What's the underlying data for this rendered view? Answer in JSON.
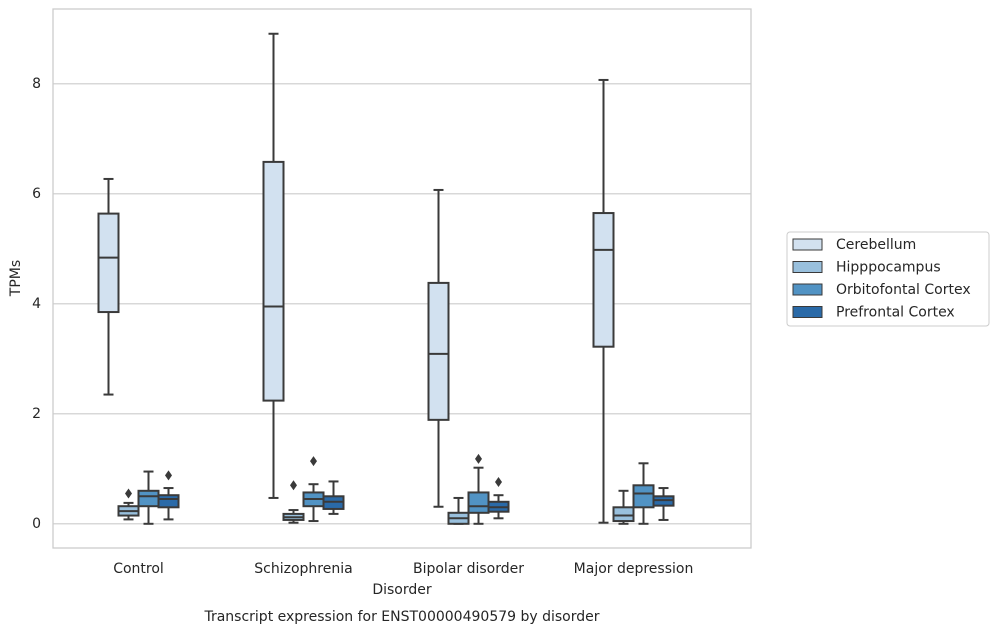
{
  "chart_data": {
    "type": "box",
    "title": "Transcript expression for ENST00000490579 by disorder",
    "x_label": "Disorder",
    "y_label": "TPMs",
    "categories": [
      "Control",
      "Schizophrenia",
      "Bipolar disorder",
      "Major depression"
    ],
    "ylim": [
      -0.44,
      9.36
    ],
    "yticks": [
      0,
      2,
      4,
      6,
      8
    ],
    "grid": true,
    "legend": "right",
    "series": [
      {
        "name": "Cerebellum",
        "color": "#d2e1f0",
        "values": [
          {
            "min": 2.35,
            "q1": 3.85,
            "median": 4.84,
            "q3": 5.64,
            "max": 6.27,
            "outliers": []
          },
          {
            "min": 0.47,
            "q1": 2.24,
            "median": 3.95,
            "q3": 6.58,
            "max": 8.91,
            "outliers": []
          },
          {
            "min": 0.31,
            "q1": 1.89,
            "median": 3.09,
            "q3": 4.38,
            "max": 6.07,
            "outliers": []
          },
          {
            "min": 0.02,
            "q1": 3.22,
            "median": 4.98,
            "q3": 5.65,
            "max": 8.07,
            "outliers": []
          }
        ]
      },
      {
        "name": "Hipppocampus",
        "color": "#99c0dd",
        "values": [
          {
            "min": 0.08,
            "q1": 0.15,
            "median": 0.23,
            "q3": 0.32,
            "max": 0.38,
            "outliers": [
              0.55
            ]
          },
          {
            "min": 0.02,
            "q1": 0.07,
            "median": 0.12,
            "q3": 0.18,
            "max": 0.25,
            "outliers": [
              0.7
            ]
          },
          {
            "min": 0.0,
            "q1": 0.0,
            "median": 0.1,
            "q3": 0.2,
            "max": 0.47,
            "outliers": []
          },
          {
            "min": 0.0,
            "q1": 0.05,
            "median": 0.15,
            "q3": 0.3,
            "max": 0.6,
            "outliers": []
          }
        ]
      },
      {
        "name": "Orbitofontal Cortex",
        "color": "#5193c4",
        "values": [
          {
            "min": 0.0,
            "q1": 0.32,
            "median": 0.5,
            "q3": 0.6,
            "max": 0.95,
            "outliers": []
          },
          {
            "min": 0.05,
            "q1": 0.32,
            "median": 0.45,
            "q3": 0.57,
            "max": 0.72,
            "outliers": [
              1.14
            ]
          },
          {
            "min": 0.0,
            "q1": 0.2,
            "median": 0.32,
            "q3": 0.57,
            "max": 1.02,
            "outliers": [
              1.18
            ]
          },
          {
            "min": 0.0,
            "q1": 0.3,
            "median": 0.55,
            "q3": 0.7,
            "max": 1.1,
            "outliers": []
          }
        ]
      },
      {
        "name": "Prefrontal Cortex",
        "color": "#2a6aa8",
        "values": [
          {
            "min": 0.08,
            "q1": 0.3,
            "median": 0.45,
            "q3": 0.52,
            "max": 0.65,
            "outliers": [
              0.88
            ]
          },
          {
            "min": 0.18,
            "q1": 0.27,
            "median": 0.4,
            "q3": 0.5,
            "max": 0.77,
            "outliers": []
          },
          {
            "min": 0.1,
            "q1": 0.22,
            "median": 0.3,
            "q3": 0.4,
            "max": 0.52,
            "outliers": [
              0.76
            ]
          },
          {
            "min": 0.07,
            "q1": 0.33,
            "median": 0.43,
            "q3": 0.5,
            "max": 0.65,
            "outliers": []
          }
        ]
      }
    ]
  }
}
